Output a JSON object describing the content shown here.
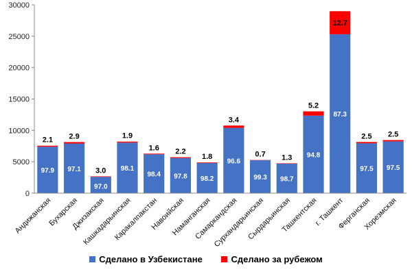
{
  "chart_data": {
    "type": "bar",
    "stacked": true,
    "categories": [
      "Андижанская",
      "Бухарская",
      "Джизакская",
      "Кашкадарьинская",
      "Каракалпакстан",
      "Навоийская",
      "Наманганская",
      "Самаркандская",
      "Сурхандарьинская",
      "Сырдарьинская",
      "Ташкентская",
      "г. Ташкент",
      "Ферганская",
      "Хорезмская"
    ],
    "series": [
      {
        "name": "Сделано в Узбекистане",
        "color": "#4472c4",
        "values": [
          7400,
          7900,
          2600,
          8050,
          6200,
          5600,
          4800,
          10400,
          5250,
          4700,
          12350,
          25300,
          7950,
          8250
        ],
        "labels": [
          "97.9",
          "97.1",
          "97.0",
          "98.1",
          "98.4",
          "97.8",
          "98.2",
          "96.6",
          "99.3",
          "98.7",
          "94.8",
          "87.3",
          "97.5",
          "97.5"
        ]
      },
      {
        "name": "Сделано за рубежом",
        "color": "#ff0000",
        "values": [
          160,
          240,
          80,
          160,
          100,
          130,
          90,
          370,
          40,
          60,
          680,
          3680,
          200,
          210
        ],
        "labels": [
          "2.1",
          "2.9",
          "3.0",
          "1.9",
          "1.6",
          "2.2",
          "1.8",
          "3.4",
          "0.7",
          "1.3",
          "5.2",
          "12.7",
          "2.5",
          "2.5"
        ]
      }
    ],
    "y_ticks": [
      "0",
      "5000",
      "10000",
      "15000",
      "20000",
      "25000",
      "30000"
    ],
    "ylim": [
      0,
      30000
    ],
    "title": "",
    "xlabel": "",
    "ylabel": "",
    "grid": false,
    "legend_position": "bottom"
  }
}
